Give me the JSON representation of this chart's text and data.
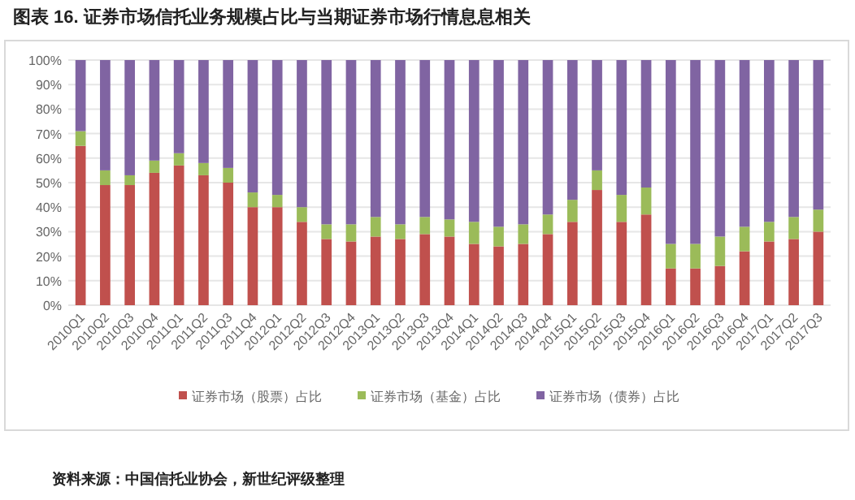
{
  "chart_data": {
    "type": "bar",
    "stacked": true,
    "title": "图表 16.      证券市场信托业务规模占比与当期证券市场行情息息相关",
    "categories": [
      "2010Q1",
      "2010Q2",
      "2010Q3",
      "2010Q4",
      "2011Q1",
      "2011Q2",
      "2011Q3",
      "2011Q4",
      "2012Q1",
      "2012Q2",
      "2012Q3",
      "2012Q4",
      "2013Q1",
      "2013Q2",
      "2013Q3",
      "2013Q4",
      "2014Q1",
      "2014Q2",
      "2014Q3",
      "2014Q4",
      "2015Q1",
      "2015Q2",
      "2015Q3",
      "2015Q4",
      "2016Q1",
      "2016Q2",
      "2016Q3",
      "2016Q4",
      "2017Q1",
      "2017Q2",
      "2017Q3"
    ],
    "series": [
      {
        "name": "证券市场（股票）占比",
        "color": "#c0504d",
        "values": [
          65,
          49,
          49,
          54,
          57,
          53,
          50,
          40,
          40,
          34,
          27,
          26,
          28,
          27,
          29,
          28,
          25,
          24,
          25,
          29,
          34,
          47,
          34,
          37,
          15,
          15,
          16,
          22,
          26,
          27,
          30
        ]
      },
      {
        "name": "证券市场（基金）占比",
        "color": "#9bbb59",
        "values": [
          6,
          6,
          4,
          5,
          5,
          5,
          6,
          6,
          5,
          6,
          6,
          7,
          8,
          6,
          7,
          7,
          9,
          8,
          8,
          8,
          9,
          8,
          11,
          11,
          10,
          10,
          12,
          10,
          8,
          9,
          9
        ]
      },
      {
        "name": "证券市场（债券）占比",
        "color": "#8064a2",
        "values": [
          29,
          45,
          47,
          41,
          38,
          42,
          44,
          54,
          55,
          60,
          67,
          67,
          64,
          67,
          64,
          65,
          66,
          68,
          67,
          63,
          57,
          45,
          55,
          52,
          75,
          75,
          72,
          68,
          66,
          64,
          61
        ]
      }
    ],
    "ylim": [
      0,
      100
    ],
    "yticks": [
      {
        "value": 0,
        "label": "0%"
      },
      {
        "value": 10,
        "label": "10%"
      },
      {
        "value": 20,
        "label": "20%"
      },
      {
        "value": 30,
        "label": "30%"
      },
      {
        "value": 40,
        "label": "40%"
      },
      {
        "value": 50,
        "label": "50%"
      },
      {
        "value": 60,
        "label": "60%"
      },
      {
        "value": 70,
        "label": "70%"
      },
      {
        "value": 80,
        "label": "80%"
      },
      {
        "value": 90,
        "label": "90%"
      },
      {
        "value": 100,
        "label": "100%"
      }
    ],
    "grid": "y",
    "legend": "bottom",
    "annotations": [
      "资料来源：中国信托业协会，新世纪评级整理"
    ]
  }
}
